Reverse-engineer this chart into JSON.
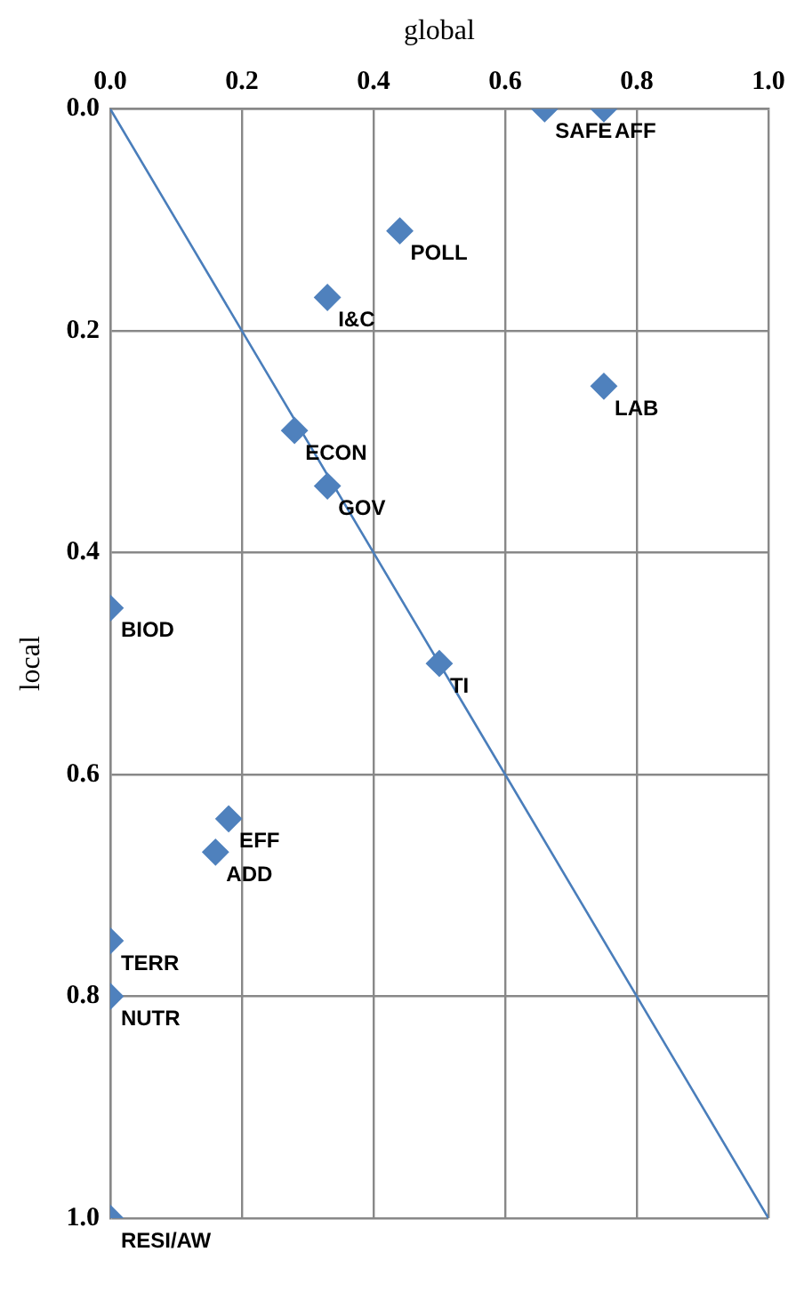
{
  "chart_data": {
    "type": "scatter",
    "xlabel": "global",
    "ylabel": "local",
    "xlim": [
      0,
      1
    ],
    "ylim": [
      1,
      0
    ],
    "xticks": [
      {
        "value": 0,
        "label": "0.0"
      },
      {
        "value": 0.2,
        "label": "0.2"
      },
      {
        "value": 0.4,
        "label": "0.4"
      },
      {
        "value": 0.6,
        "label": "0.6"
      },
      {
        "value": 0.8,
        "label": "0.8"
      },
      {
        "value": 1,
        "label": "1.0"
      }
    ],
    "yticks": [
      {
        "value": 0,
        "label": "0.0"
      },
      {
        "value": 0.2,
        "label": "0.2"
      },
      {
        "value": 0.4,
        "label": "0.4"
      },
      {
        "value": 0.6,
        "label": "0.6"
      },
      {
        "value": 0.8,
        "label": "0.8"
      },
      {
        "value": 1,
        "label": "1.0"
      }
    ],
    "grid": true,
    "legend": false,
    "series": [
      {
        "color": "#4f81bd",
        "marker": "diamond",
        "x": [
          0.75,
          0.66,
          0.44,
          0.33,
          0.75,
          0.28,
          0.33,
          0,
          0.5,
          0.18,
          0.16,
          0,
          0,
          0
        ],
        "values": [
          0,
          0,
          0.11,
          0.17,
          0.25,
          0.29,
          0.34,
          0.45,
          0.5,
          0.64,
          0.67,
          0.75,
          0.8,
          1
        ]
      },
      {
        "type": "line",
        "color": "#4a7ebb",
        "marker": "none",
        "line_style": "solid",
        "x": [
          0,
          1
        ],
        "values": [
          0,
          1
        ]
      }
    ],
    "annotations": [
      {
        "text": "AFF",
        "x": 0.75,
        "y": 0
      },
      {
        "text": "SAFE",
        "x": 0.66,
        "y": 0
      },
      {
        "text": "POLL",
        "x": 0.44,
        "y": 0.11
      },
      {
        "text": "I&C",
        "x": 0.33,
        "y": 0.17
      },
      {
        "text": "LAB",
        "x": 0.75,
        "y": 0.25
      },
      {
        "text": "ECON",
        "x": 0.28,
        "y": 0.29
      },
      {
        "text": "GOV",
        "x": 0.33,
        "y": 0.34
      },
      {
        "text": "BIOD",
        "x": 0,
        "y": 0.45
      },
      {
        "text": "TI",
        "x": 0.5,
        "y": 0.5
      },
      {
        "text": "EFF",
        "x": 0.18,
        "y": 0.64
      },
      {
        "text": "ADD",
        "x": 0.16,
        "y": 0.67
      },
      {
        "text": "TERR",
        "x": 0,
        "y": 0.75
      },
      {
        "text": "NUTR",
        "x": 0,
        "y": 0.8
      },
      {
        "text": "RESI/AW",
        "x": 0,
        "y": 1
      }
    ]
  }
}
